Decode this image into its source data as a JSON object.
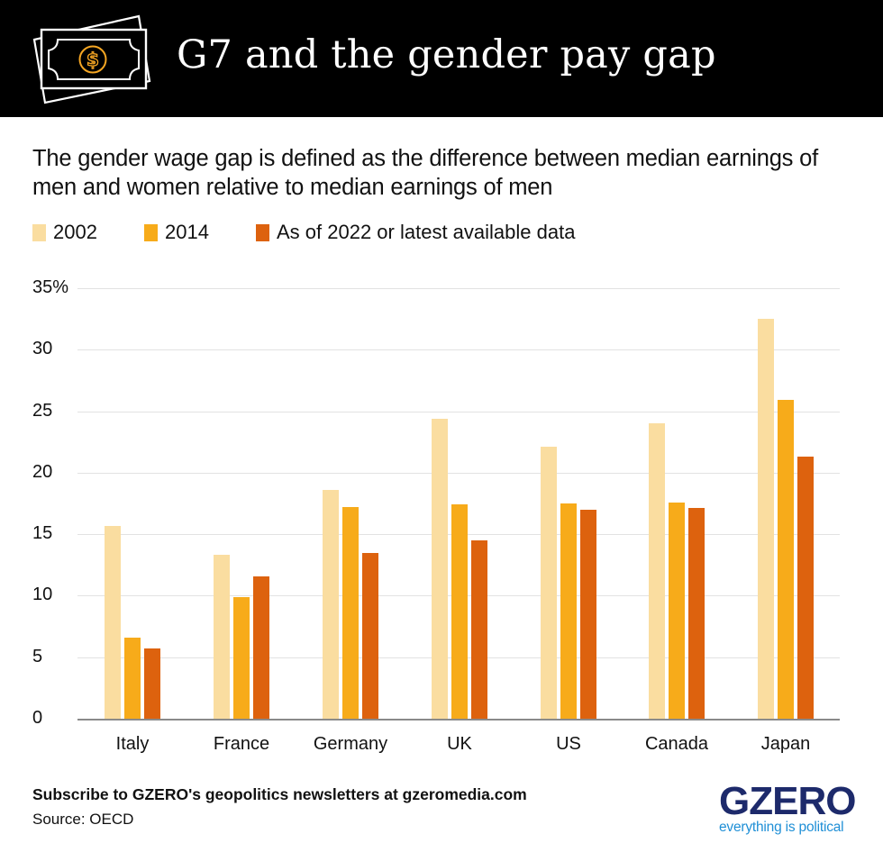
{
  "header": {
    "title": "G7 and the gender pay gap",
    "icon": "money-bill-dollar-icon",
    "background": "#000000",
    "icon_accent": "#f5a623"
  },
  "subtitle": "The gender wage gap is defined as the difference between median earnings of men and women relative to median earnings of men",
  "legend": [
    {
      "label": "2002",
      "color": "#fadda0"
    },
    {
      "label": "2014",
      "color": "#f7ab1a"
    },
    {
      "label": "As of 2022 or latest available data",
      "color": "#dd620e"
    }
  ],
  "y_axis": {
    "ticks": [
      "0",
      "5",
      "10",
      "15",
      "20",
      "25",
      "30",
      "35%"
    ]
  },
  "chart_data": {
    "type": "bar",
    "title": "G7 and the gender pay gap",
    "subtitle": "The gender wage gap is defined as the difference between median earnings of men and women relative to median earnings of men",
    "xlabel": "",
    "ylabel": "",
    "categories": [
      "Italy",
      "France",
      "Germany",
      "UK",
      "US",
      "Canada",
      "Japan"
    ],
    "series": [
      {
        "name": "2002",
        "color": "#fadda0",
        "values": [
          15.7,
          13.3,
          18.6,
          24.4,
          22.1,
          24.0,
          32.5
        ]
      },
      {
        "name": "2014",
        "color": "#f7ab1a",
        "values": [
          6.6,
          9.9,
          17.2,
          17.4,
          17.5,
          17.6,
          25.9
        ]
      },
      {
        "name": "As of 2022 or latest available data",
        "color": "#dd620e",
        "values": [
          5.7,
          11.6,
          13.5,
          14.5,
          17.0,
          17.1,
          21.3
        ]
      }
    ],
    "ylim": [
      0,
      35
    ],
    "yticks": [
      0,
      5,
      10,
      15,
      20,
      25,
      30,
      35
    ],
    "ytick_labels": [
      "0",
      "5",
      "10",
      "15",
      "20",
      "25",
      "30",
      "35%"
    ],
    "grid": true,
    "legend_position": "top-left"
  },
  "footer": {
    "subscribe": "Subscribe to GZERO's geopolitics newsletters at gzeromedia.com",
    "source": "Source: OECD"
  },
  "logo": {
    "wordmark": "GZERO",
    "tagline": "everything is political",
    "wordmark_color": "#1d2a6b",
    "tagline_color": "#1f8fd6"
  }
}
